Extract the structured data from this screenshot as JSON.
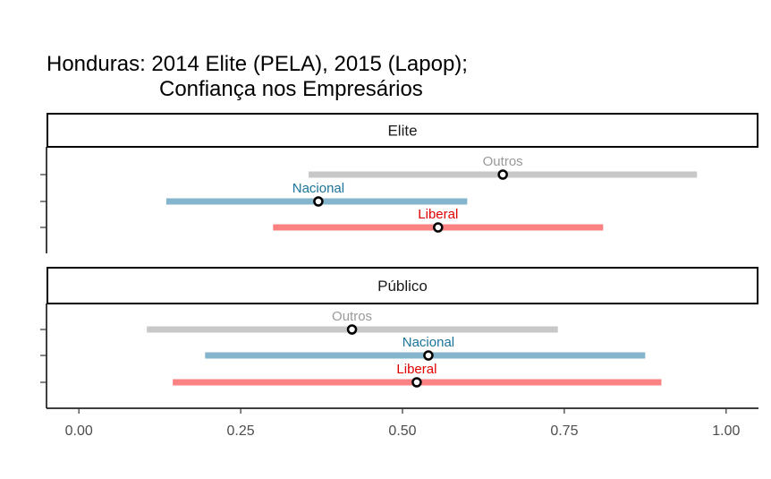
{
  "chart_data": {
    "type": "dot-interval",
    "title_line1": "Honduras: 2014 Elite (PELA), 2015 (Lapop);",
    "title_line2": "Confiança nos Empresários",
    "xlim": [
      -0.05,
      1.05
    ],
    "x_ticks": [
      0.0,
      0.25,
      0.5,
      0.75,
      1.0
    ],
    "x_tick_labels": [
      "0.00",
      "0.25",
      "0.50",
      "0.75",
      "1.00"
    ],
    "grid": false,
    "panels": [
      {
        "strip": "Elite",
        "series": [
          {
            "name": "Outros",
            "estimate": 0.655,
            "low": 0.355,
            "high": 0.955,
            "color": "#c8c8c8",
            "label_color": "#999999"
          },
          {
            "name": "Nacional",
            "estimate": 0.37,
            "low": 0.135,
            "high": 0.6,
            "color": "#85b5cc",
            "label_color": "#1a7399"
          },
          {
            "name": "Liberal",
            "estimate": 0.555,
            "low": 0.3,
            "high": 0.81,
            "color": "#fa8282",
            "label_color": "#e00000"
          }
        ]
      },
      {
        "strip": "Público",
        "series": [
          {
            "name": "Outros",
            "estimate": 0.422,
            "low": 0.105,
            "high": 0.74,
            "color": "#c8c8c8",
            "label_color": "#999999"
          },
          {
            "name": "Nacional",
            "estimate": 0.54,
            "low": 0.195,
            "high": 0.875,
            "color": "#85b5cc",
            "label_color": "#1a7399"
          },
          {
            "name": "Liberal",
            "estimate": 0.522,
            "low": 0.145,
            "high": 0.9,
            "color": "#fa8282",
            "label_color": "#e00000"
          }
        ]
      }
    ]
  }
}
